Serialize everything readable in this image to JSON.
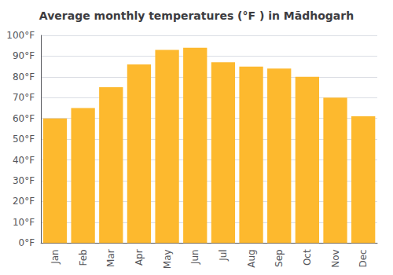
{
  "chart_data": {
    "type": "bar",
    "title": "Average monthly temperatures (°F ) in Mādhogarh",
    "categories": [
      "Jan",
      "Feb",
      "Mar",
      "Apr",
      "May",
      "Jun",
      "Jul",
      "Aug",
      "Sep",
      "Oct",
      "Nov",
      "Dec"
    ],
    "values": [
      60,
      65,
      75,
      86,
      93,
      94,
      87,
      85,
      84,
      80,
      70,
      61
    ],
    "color": "#FDB92E",
    "ylim": [
      0,
      100
    ],
    "yticks": [
      {
        "value": 0,
        "label": "0°F"
      },
      {
        "value": 10,
        "label": "10°F"
      },
      {
        "value": 20,
        "label": "20°F"
      },
      {
        "value": 30,
        "label": "30°F"
      },
      {
        "value": 40,
        "label": "40°F"
      },
      {
        "value": 50,
        "label": "50°F"
      },
      {
        "value": 60,
        "label": "60°F"
      },
      {
        "value": 70,
        "label": "70°F"
      },
      {
        "value": 80,
        "label": "80°F"
      },
      {
        "value": 90,
        "label": "90°F"
      },
      {
        "value": 100,
        "label": "100°F"
      }
    ],
    "grid": true
  }
}
